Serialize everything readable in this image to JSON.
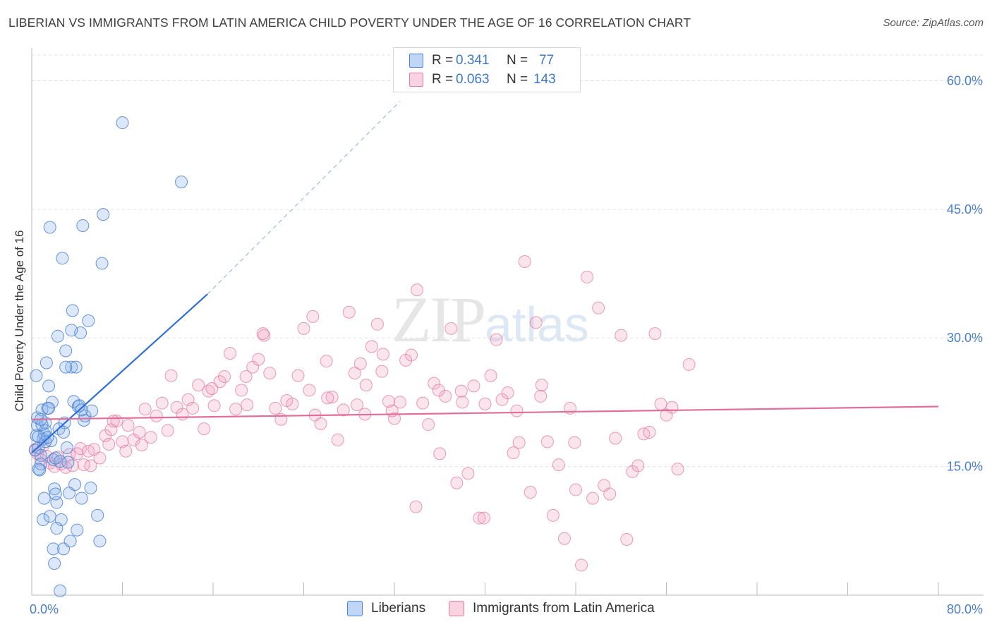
{
  "title": "LIBERIAN VS IMMIGRANTS FROM LATIN AMERICA CHILD POVERTY UNDER THE AGE OF 16 CORRELATION CHART",
  "source": "Source: ZipAtlas.com",
  "watermark": {
    "zip": "ZIP",
    "atlas": "atlas"
  },
  "colors": {
    "blue": "#4a82d4",
    "blue_fill": "rgba(140,180,235,0.30)",
    "pink": "#e07aa0",
    "pink_fill": "rgba(240,160,190,0.28)",
    "blue_line": "#2f6fd6",
    "pink_line": "#e0709a",
    "grid": "#e0e0e0",
    "tick_text": "#4a7ec7"
  },
  "legend": {
    "rows": [
      {
        "series": "Liberians",
        "r_label": "R =",
        "r_value": "0.341",
        "n_label": "N =",
        "n_value": "77"
      },
      {
        "series": "Immigrants from Latin America",
        "r_label": "R =",
        "r_value": "0.063",
        "n_label": "N =",
        "n_value": "143"
      }
    ]
  },
  "chart_data": {
    "type": "scatter",
    "title": "LIBERIAN VS IMMIGRANTS FROM LATIN AMERICA CHILD POVERTY UNDER THE AGE OF 16 CORRELATION CHART",
    "xlabel": "",
    "ylabel": "Child Poverty Under the Age of 16",
    "xlim": [
      0,
      80
    ],
    "ylim": [
      0,
      63
    ],
    "x_tick_labels": [
      "0.0%",
      "80.0%"
    ],
    "y_ticks": [
      15,
      30,
      45,
      60
    ],
    "y_tick_labels": [
      "15.0%",
      "30.0%",
      "45.0%",
      "60.0%"
    ],
    "grid": true,
    "legend_position": "top-center",
    "series": [
      {
        "name": "Liberians",
        "color": "#4a82d4",
        "trend": {
          "x": [
            0,
            15.5
          ],
          "y": [
            16.6,
            35.1
          ],
          "dashed_to": [
            32.5,
            57.6
          ]
        },
        "points": [
          [
            0.3,
            16.9
          ],
          [
            0.4,
            18.6
          ],
          [
            0.5,
            19.8
          ],
          [
            0.6,
            17.2
          ],
          [
            0.5,
            20.7
          ],
          [
            0.4,
            25.6
          ],
          [
            0.7,
            14.6
          ],
          [
            0.8,
            16.3
          ],
          [
            0.9,
            21.6
          ],
          [
            1.0,
            18.2
          ],
          [
            1.1,
            18.8
          ],
          [
            1.2,
            20.1
          ],
          [
            1.3,
            27.1
          ],
          [
            1.2,
            19.2
          ],
          [
            1.4,
            21.8
          ],
          [
            1.5,
            24.4
          ],
          [
            1.6,
            42.9
          ],
          [
            1.7,
            18.0
          ],
          [
            1.8,
            22.5
          ],
          [
            1.9,
            15.8
          ],
          [
            2.0,
            12.4
          ],
          [
            2.1,
            16.0
          ],
          [
            2.2,
            10.8
          ],
          [
            2.3,
            30.2
          ],
          [
            2.4,
            19.4
          ],
          [
            2.5,
            15.6
          ],
          [
            2.6,
            8.8
          ],
          [
            2.7,
            39.3
          ],
          [
            2.8,
            5.4
          ],
          [
            2.9,
            20.1
          ],
          [
            3.0,
            28.5
          ],
          [
            3.1,
            17.2
          ],
          [
            3.2,
            15.5
          ],
          [
            3.3,
            11.9
          ],
          [
            3.4,
            6.3
          ],
          [
            3.5,
            26.6
          ],
          [
            3.6,
            33.2
          ],
          [
            3.7,
            22.6
          ],
          [
            3.8,
            12.9
          ],
          [
            3.9,
            26.6
          ],
          [
            4.0,
            7.6
          ],
          [
            4.1,
            22.0
          ],
          [
            4.2,
            22.1
          ],
          [
            4.3,
            30.6
          ],
          [
            4.4,
            11.3
          ],
          [
            4.5,
            43.1
          ],
          [
            4.6,
            20.4
          ],
          [
            4.7,
            20.9
          ],
          [
            5.0,
            32.0
          ],
          [
            5.2,
            12.5
          ],
          [
            5.3,
            21.5
          ],
          [
            5.8,
            9.3
          ],
          [
            6.0,
            6.3
          ],
          [
            6.2,
            38.7
          ],
          [
            6.3,
            44.4
          ],
          [
            8.0,
            55.1
          ],
          [
            13.2,
            48.2
          ],
          [
            2.0,
            3.7
          ],
          [
            2.5,
            0.5
          ],
          [
            1.0,
            8.8
          ],
          [
            1.6,
            9.2
          ],
          [
            0.8,
            15.3
          ],
          [
            0.6,
            14.7
          ],
          [
            1.2,
            17.9
          ],
          [
            1.9,
            5.4
          ],
          [
            3.5,
            30.9
          ],
          [
            4.4,
            21.6
          ],
          [
            2.1,
            11.8
          ],
          [
            1.1,
            11.3
          ],
          [
            0.9,
            19.9
          ],
          [
            1.4,
            18.4
          ],
          [
            0.6,
            18.5
          ],
          [
            2.8,
            19.0
          ],
          [
            3.0,
            26.6
          ],
          [
            1.5,
            21.8
          ],
          [
            0.8,
            20.5
          ],
          [
            2.2,
            7.8
          ]
        ]
      },
      {
        "name": "Immigrants from Latin America",
        "color": "#e07aa0",
        "trend": {
          "x": [
            0,
            80
          ],
          "y": [
            20.5,
            22.0
          ]
        },
        "points": [
          [
            0.3,
            17.0
          ],
          [
            0.5,
            16.5
          ],
          [
            0.8,
            15.8
          ],
          [
            1.0,
            17.4
          ],
          [
            1.3,
            16.2
          ],
          [
            1.6,
            15.4
          ],
          [
            2.0,
            15.0
          ],
          [
            2.3,
            16.1
          ],
          [
            2.6,
            15.3
          ],
          [
            3.0,
            14.9
          ],
          [
            3.3,
            16.4
          ],
          [
            3.6,
            15.1
          ],
          [
            4.0,
            16.5
          ],
          [
            4.3,
            17.1
          ],
          [
            4.6,
            15.2
          ],
          [
            5.0,
            16.8
          ],
          [
            5.5,
            17.0
          ],
          [
            6.0,
            16.0
          ],
          [
            6.5,
            18.6
          ],
          [
            7.0,
            19.3
          ],
          [
            7.5,
            20.3
          ],
          [
            8.0,
            17.9
          ],
          [
            8.5,
            19.8
          ],
          [
            9.0,
            18.1
          ],
          [
            9.5,
            19.0
          ],
          [
            10.0,
            21.7
          ],
          [
            10.5,
            18.4
          ],
          [
            11.0,
            20.9
          ],
          [
            11.5,
            22.4
          ],
          [
            12.0,
            19.2
          ],
          [
            12.3,
            25.6
          ],
          [
            12.8,
            21.9
          ],
          [
            13.3,
            21.1
          ],
          [
            13.8,
            22.8
          ],
          [
            14.2,
            21.8
          ],
          [
            14.7,
            24.5
          ],
          [
            15.2,
            19.4
          ],
          [
            15.6,
            23.8
          ],
          [
            16.1,
            22.1
          ],
          [
            16.6,
            24.9
          ],
          [
            17.0,
            25.5
          ],
          [
            17.5,
            28.2
          ],
          [
            18.0,
            21.7
          ],
          [
            18.5,
            23.9
          ],
          [
            19.0,
            22.2
          ],
          [
            19.5,
            26.6
          ],
          [
            20.0,
            27.5
          ],
          [
            20.5,
            30.3
          ],
          [
            21.0,
            25.9
          ],
          [
            21.5,
            21.8
          ],
          [
            22.0,
            20.5
          ],
          [
            22.5,
            22.7
          ],
          [
            23.0,
            22.3
          ],
          [
            23.5,
            25.6
          ],
          [
            24.0,
            31.1
          ],
          [
            24.5,
            23.9
          ],
          [
            25.0,
            21.0
          ],
          [
            25.5,
            20.0
          ],
          [
            26.0,
            27.3
          ],
          [
            26.5,
            23.1
          ],
          [
            27.0,
            18.1
          ],
          [
            27.5,
            21.6
          ],
          [
            28.0,
            33.0
          ],
          [
            28.5,
            25.9
          ],
          [
            29.0,
            27.0
          ],
          [
            29.5,
            24.5
          ],
          [
            30.0,
            29.0
          ],
          [
            30.5,
            31.6
          ],
          [
            31.0,
            28.1
          ],
          [
            31.5,
            22.6
          ],
          [
            32.0,
            20.6
          ],
          [
            32.5,
            22.5
          ],
          [
            33.0,
            27.4
          ],
          [
            33.5,
            28.0
          ],
          [
            34.0,
            35.6
          ],
          [
            34.5,
            22.4
          ],
          [
            35.0,
            19.9
          ],
          [
            35.5,
            24.7
          ],
          [
            36.0,
            16.5
          ],
          [
            36.5,
            23.2
          ],
          [
            37.0,
            31.1
          ],
          [
            37.5,
            13.1
          ],
          [
            38.0,
            22.5
          ],
          [
            38.5,
            14.2
          ],
          [
            39.0,
            24.4
          ],
          [
            39.5,
            9.0
          ],
          [
            40.0,
            22.3
          ],
          [
            40.5,
            25.6
          ],
          [
            41.0,
            29.8
          ],
          [
            41.5,
            22.8
          ],
          [
            42.0,
            23.6
          ],
          [
            42.5,
            16.6
          ],
          [
            43.0,
            17.8
          ],
          [
            43.5,
            38.9
          ],
          [
            44.0,
            12.0
          ],
          [
            44.5,
            31.8
          ],
          [
            45.0,
            24.5
          ],
          [
            45.5,
            17.9
          ],
          [
            46.0,
            9.3
          ],
          [
            46.5,
            15.2
          ],
          [
            47.0,
            6.6
          ],
          [
            47.5,
            21.8
          ],
          [
            48.0,
            12.3
          ],
          [
            48.5,
            3.5
          ],
          [
            49.0,
            37.1
          ],
          [
            49.5,
            11.3
          ],
          [
            50.0,
            33.5
          ],
          [
            50.5,
            12.8
          ],
          [
            51.0,
            11.8
          ],
          [
            51.5,
            18.3
          ],
          [
            52.0,
            30.3
          ],
          [
            52.5,
            6.5
          ],
          [
            53.0,
            14.4
          ],
          [
            53.5,
            15.1
          ],
          [
            54.0,
            18.8
          ],
          [
            54.5,
            19.0
          ],
          [
            55.0,
            30.5
          ],
          [
            55.5,
            22.3
          ],
          [
            56.0,
            21.0
          ],
          [
            56.5,
            21.9
          ],
          [
            57.0,
            14.7
          ],
          [
            58.0,
            26.9
          ],
          [
            8.3,
            16.8
          ],
          [
            9.7,
            17.5
          ],
          [
            6.8,
            17.6
          ],
          [
            5.2,
            15.1
          ],
          [
            7.2,
            20.3
          ],
          [
            24.8,
            32.5
          ],
          [
            20.4,
            30.5
          ],
          [
            15.9,
            24.1
          ],
          [
            26.1,
            23.0
          ],
          [
            37.9,
            23.8
          ],
          [
            44.9,
            23.2
          ],
          [
            39.9,
            9.0
          ],
          [
            35.9,
            23.9
          ],
          [
            47.9,
            17.8
          ],
          [
            33.9,
            10.3
          ],
          [
            28.7,
            22.2
          ],
          [
            31.8,
            21.5
          ],
          [
            42.8,
            21.5
          ],
          [
            29.4,
            21.1
          ],
          [
            30.9,
            26.1
          ],
          [
            18.9,
            25.5
          ]
        ]
      }
    ]
  }
}
